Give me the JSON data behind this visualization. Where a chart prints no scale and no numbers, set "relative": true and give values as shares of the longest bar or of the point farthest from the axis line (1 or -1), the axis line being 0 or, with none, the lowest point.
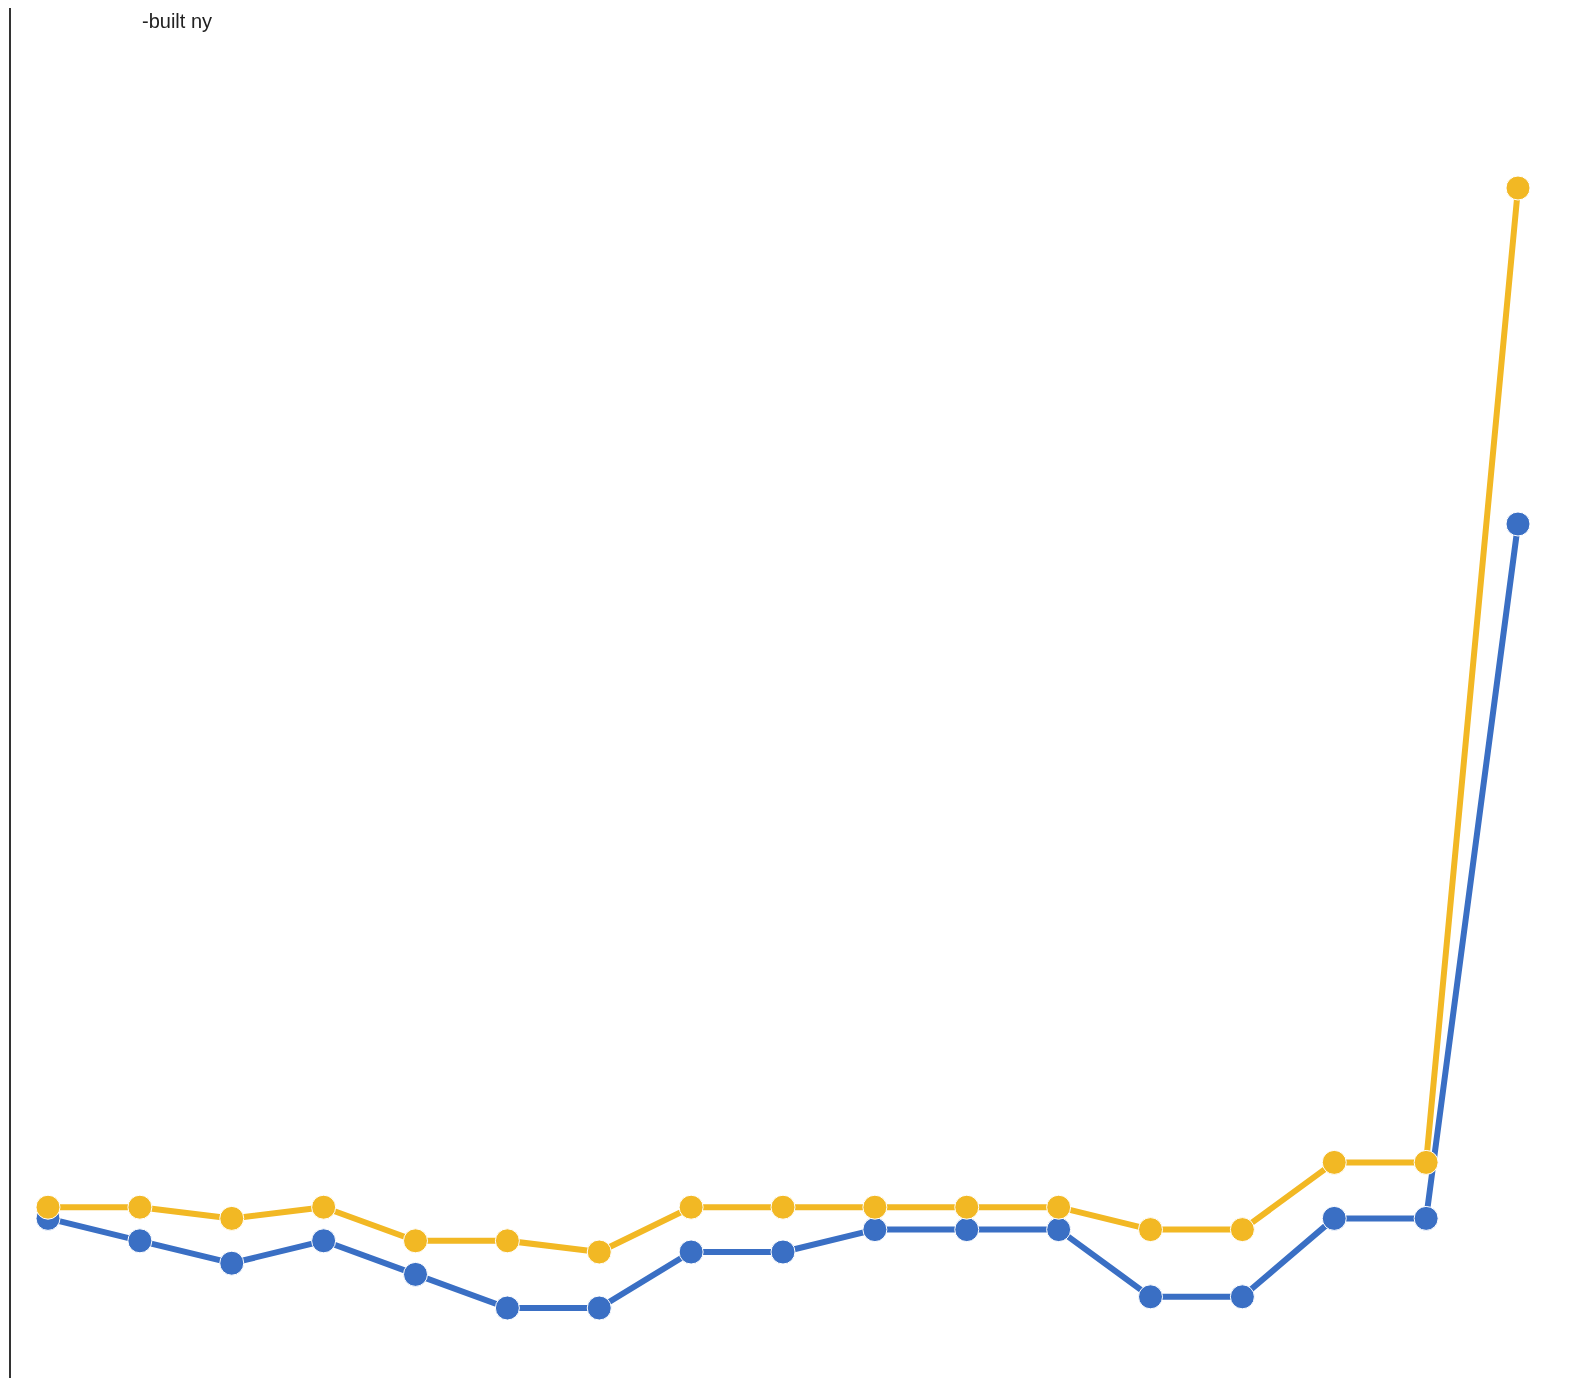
{
  "chart_data": {
    "type": "line",
    "relative": true,
    "marker": "circle",
    "line_style": "solid",
    "annotations": [
      "-built ny"
    ],
    "categories": [
      null,
      null,
      null,
      null,
      null,
      null,
      null,
      null,
      null,
      null,
      null,
      null,
      null,
      null,
      null,
      null,
      null
    ],
    "series": [
      {
        "color": "#f2b824",
        "values": [
          0.09,
          0.09,
          0.08,
          0.09,
          0.06,
          0.06,
          0.05,
          0.09,
          0.09,
          0.09,
          0.09,
          0.09,
          0.07,
          0.07,
          0.13,
          0.13,
          1
        ]
      },
      {
        "color": "#3a6fc4",
        "values": [
          0.08,
          0.06,
          0.04,
          0.06,
          0.03,
          0,
          0,
          0.05,
          0.05,
          0.07,
          0.07,
          0.07,
          0.01,
          0.01,
          0.08,
          0.08,
          0.7
        ]
      }
    ]
  }
}
